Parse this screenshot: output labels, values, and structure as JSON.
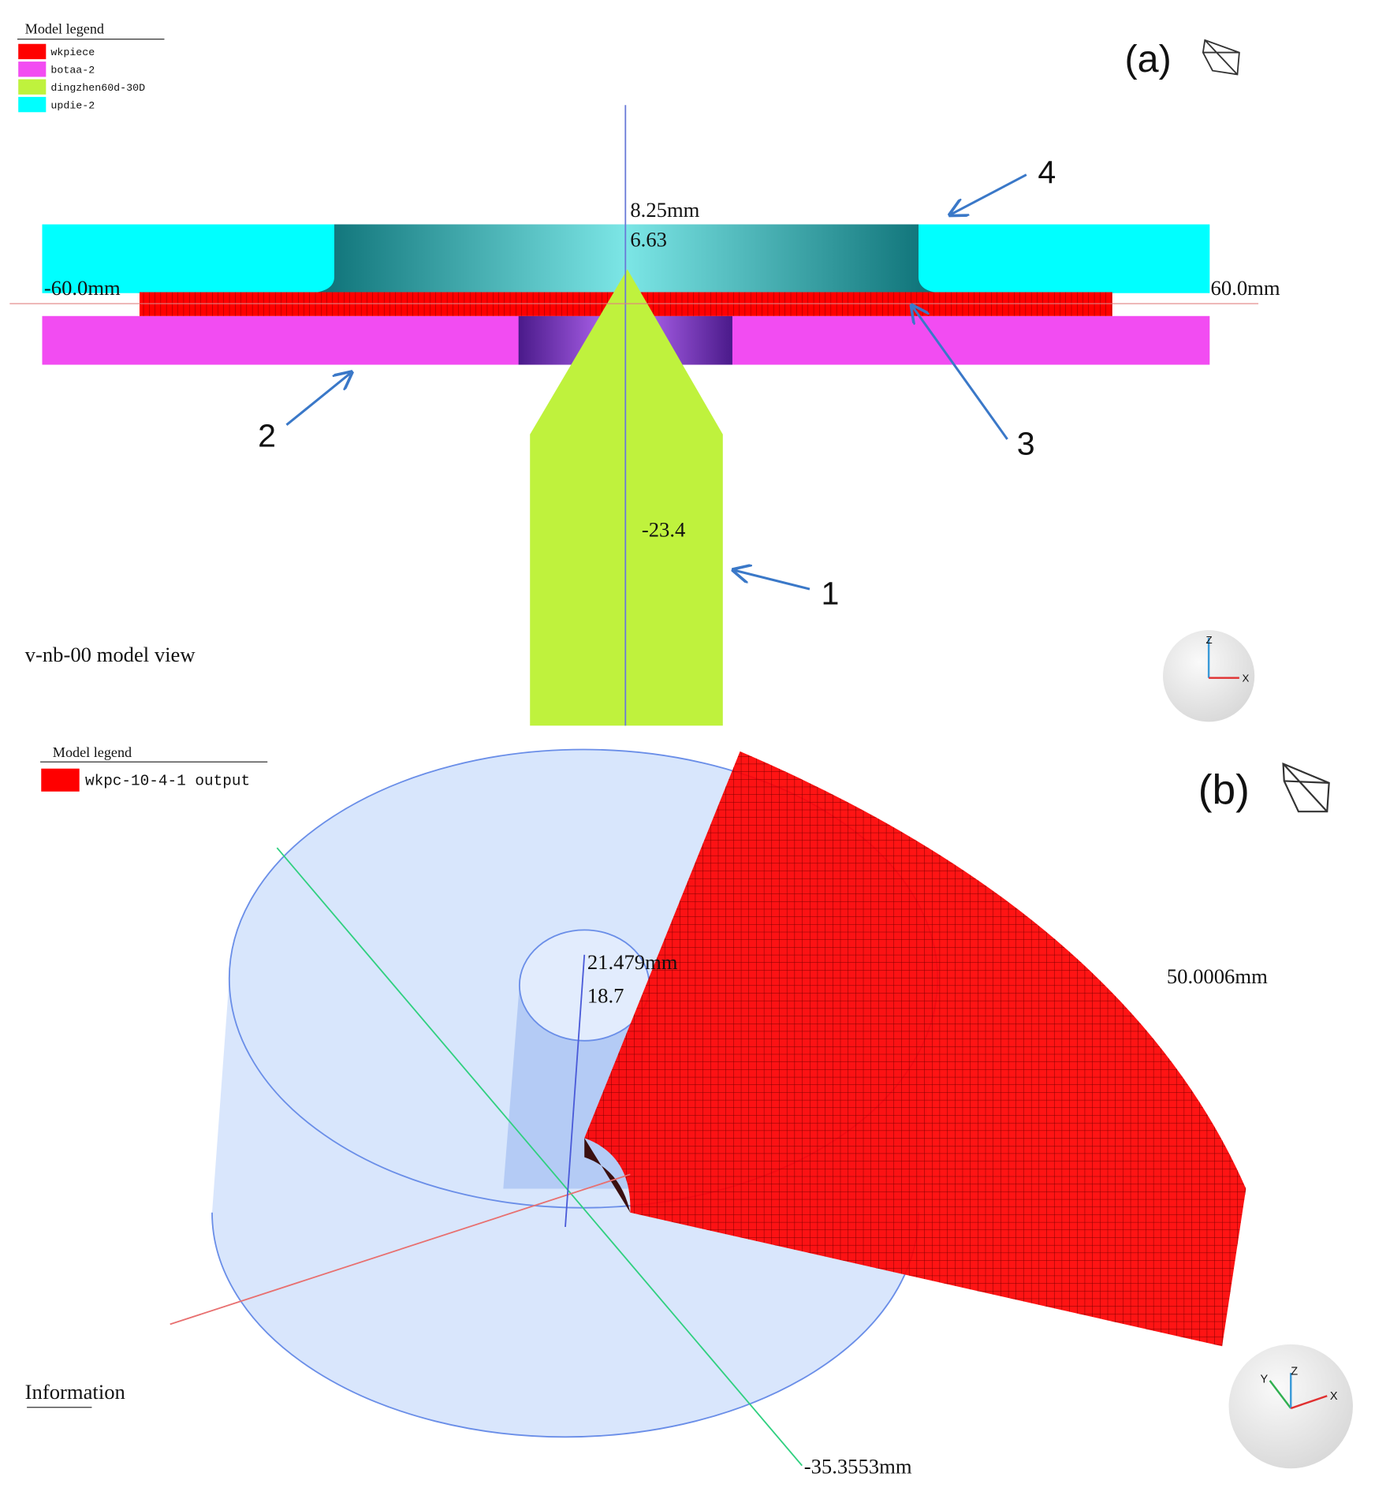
{
  "panel_a": {
    "label": "(a)",
    "legend": {
      "title": "Model legend",
      "items": [
        {
          "name": "wkpiece",
          "color": "#ff0000"
        },
        {
          "name": "botaa-2",
          "color": "#f24cf2"
        },
        {
          "name": "dingzhen60d-30D",
          "color": "#bff23d"
        },
        {
          "name": "updie-2",
          "color": "#00ffff"
        }
      ]
    },
    "dimensions": {
      "top": "8.25mm",
      "tip": "6.63",
      "left": "-60.0mm",
      "right": "60.0mm",
      "bottom": "-23.4"
    },
    "callouts": [
      "1",
      "2",
      "3",
      "4"
    ],
    "view_name": "v-nb-00 model view",
    "triad": [
      "Z",
      "X"
    ]
  },
  "panel_b": {
    "label": "(b)",
    "legend": {
      "title": "Model legend",
      "items": [
        {
          "name": "wkpc-10-4-1 output",
          "color": "#ff0000"
        }
      ]
    },
    "dimensions": {
      "top": "21.479mm",
      "tip": "18.7",
      "right": "50.0006mm",
      "bottom": "-35.3553mm"
    },
    "info": "Information",
    "triad": [
      "Y",
      "Z",
      "X"
    ]
  }
}
